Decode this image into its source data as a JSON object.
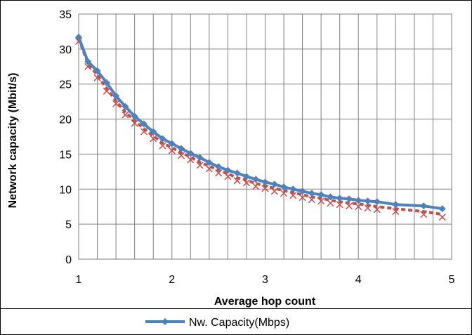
{
  "chart_data": {
    "type": "line",
    "xlabel": "Average hop count",
    "ylabel": "Network capacity (Mbit/s)",
    "xlim": [
      1,
      5
    ],
    "ylim": [
      0,
      35
    ],
    "x_ticks": [
      "1",
      "2",
      "3",
      "4",
      "5"
    ],
    "y_ticks": [
      "0",
      "5",
      "10",
      "15",
      "20",
      "25",
      "30",
      "35"
    ],
    "grid": true,
    "legend_position": "bottom",
    "series": [
      {
        "name": "Nw. Capacity(Mbps)",
        "color": "#4f81bd",
        "marker": "diamond",
        "x": [
          1.0,
          1.1,
          1.2,
          1.3,
          1.4,
          1.5,
          1.6,
          1.7,
          1.8,
          1.9,
          2.0,
          2.1,
          2.2,
          2.3,
          2.4,
          2.5,
          2.6,
          2.7,
          2.8,
          2.9,
          3.0,
          3.1,
          3.2,
          3.3,
          3.4,
          3.5,
          3.6,
          3.7,
          3.8,
          3.9,
          4.0,
          4.1,
          4.2,
          4.4,
          4.7,
          4.9
        ],
        "y": [
          31.7,
          28.2,
          26.9,
          25.2,
          23.3,
          21.8,
          20.4,
          19.3,
          18.2,
          17.2,
          16.5,
          15.8,
          15.1,
          14.5,
          13.8,
          13.2,
          12.7,
          12.3,
          11.8,
          11.4,
          11.0,
          10.7,
          10.3,
          10.0,
          9.7,
          9.4,
          9.2,
          8.9,
          8.7,
          8.6,
          8.4,
          8.3,
          8.2,
          7.8,
          7.6,
          7.2
        ]
      },
      {
        "color": "#c0504d",
        "marker": "x",
        "x": [
          1.0,
          1.1,
          1.2,
          1.3,
          1.4,
          1.5,
          1.6,
          1.7,
          1.8,
          1.9,
          2.0,
          2.1,
          2.2,
          2.3,
          2.4,
          2.5,
          2.6,
          2.7,
          2.8,
          2.9,
          3.0,
          3.1,
          3.2,
          3.3,
          3.4,
          3.5,
          3.6,
          3.7,
          3.8,
          3.9,
          4.0,
          4.1,
          4.2,
          4.4,
          4.7,
          4.9
        ],
        "y": [
          31.5,
          27.9,
          26.3,
          24.4,
          22.6,
          21.0,
          19.8,
          18.6,
          17.6,
          16.6,
          15.9,
          15.2,
          14.6,
          13.8,
          13.3,
          12.7,
          12.2,
          11.6,
          11.3,
          10.8,
          10.5,
          10.1,
          9.8,
          9.5,
          9.2,
          8.9,
          8.7,
          8.4,
          8.2,
          8.0,
          7.9,
          7.7,
          7.5,
          7.2,
          6.8,
          6.4
        ]
      }
    ]
  }
}
